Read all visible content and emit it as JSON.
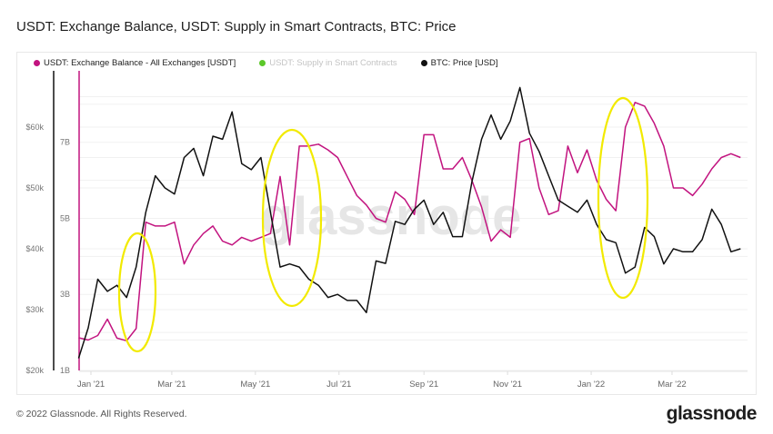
{
  "title": "USDT: Exchange Balance, USDT: Supply in Smart Contracts, BTC: Price",
  "footer": "© 2022 Glassnode. All Rights Reserved.",
  "logo": "glassnode",
  "watermark": "glassnode",
  "colors": {
    "usdt": "#c2137f",
    "contracts": "#5cc82a",
    "btc": "#111111",
    "annotation": "#f2ea00",
    "grid": "#f0f0f0"
  },
  "chart_data": {
    "type": "line",
    "title": "USDT: Exchange Balance, USDT: Supply in Smart Contracts, BTC: Price",
    "legend": [
      {
        "name": "USDT: Exchange Balance - All Exchanges [USDT]",
        "color": "#c2137f",
        "visible": true
      },
      {
        "name": "USDT: Supply in Smart Contracts",
        "color": "#5cc82a",
        "visible": false
      },
      {
        "name": "BTC: Price [USD]",
        "color": "#111111",
        "visible": true
      }
    ],
    "legend_position": "top-left",
    "x_ticks": [
      "Jan '21",
      "Mar '21",
      "May '21",
      "Jul '21",
      "Sep '21",
      "Nov '21",
      "Jan '22",
      "Mar '22"
    ],
    "y_left_outer": {
      "ticks": [
        "$20k",
        "$30k",
        "$40k",
        "$50k",
        "$60k"
      ],
      "values": [
        20000,
        30000,
        40000,
        50000,
        60000
      ],
      "range": [
        20000,
        69250
      ]
    },
    "y_left_inner": {
      "ticks": [
        "1B",
        "3B",
        "5B",
        "7B"
      ],
      "values": [
        1,
        3,
        5,
        7
      ],
      "range": [
        1,
        8.88
      ]
    },
    "grid": true,
    "dates": [
      "2020-12-23",
      "2020-12-30",
      "2021-01-06",
      "2021-01-13",
      "2021-01-20",
      "2021-01-27",
      "2021-02-03",
      "2021-02-10",
      "2021-02-17",
      "2021-02-24",
      "2021-03-03",
      "2021-03-10",
      "2021-03-17",
      "2021-03-24",
      "2021-03-31",
      "2021-04-07",
      "2021-04-14",
      "2021-04-21",
      "2021-04-28",
      "2021-05-05",
      "2021-05-12",
      "2021-05-19",
      "2021-05-26",
      "2021-06-02",
      "2021-06-09",
      "2021-06-16",
      "2021-06-23",
      "2021-06-30",
      "2021-07-07",
      "2021-07-14",
      "2021-07-21",
      "2021-07-28",
      "2021-08-04",
      "2021-08-11",
      "2021-08-18",
      "2021-08-25",
      "2021-09-01",
      "2021-09-08",
      "2021-09-15",
      "2021-09-22",
      "2021-09-29",
      "2021-10-06",
      "2021-10-13",
      "2021-10-20",
      "2021-10-27",
      "2021-11-03",
      "2021-11-10",
      "2021-11-17",
      "2021-11-24",
      "2021-12-01",
      "2021-12-08",
      "2021-12-15",
      "2021-12-22",
      "2021-12-29",
      "2022-01-05",
      "2022-01-12",
      "2022-01-19",
      "2022-01-26",
      "2022-02-02",
      "2022-02-09",
      "2022-02-16",
      "2022-02-23",
      "2022-03-02",
      "2022-03-09",
      "2022-03-16",
      "2022-03-23",
      "2022-03-30",
      "2022-04-06",
      "2022-04-13",
      "2022-04-20"
    ],
    "series": [
      {
        "name": "USDT: Exchange Balance - All Exchanges [USDT]",
        "axis": "inner",
        "unit": "B",
        "values": [
          1.86,
          1.8,
          1.92,
          2.35,
          1.85,
          1.78,
          2.1,
          4.9,
          4.8,
          4.8,
          4.9,
          3.8,
          4.3,
          4.6,
          4.8,
          4.4,
          4.3,
          4.5,
          4.4,
          4.5,
          4.6,
          6.1,
          4.3,
          6.9,
          6.9,
          6.95,
          6.8,
          6.6,
          6.1,
          5.6,
          5.35,
          5.0,
          4.9,
          5.7,
          5.5,
          5.1,
          7.2,
          7.2,
          6.3,
          6.3,
          6.6,
          6.0,
          5.3,
          4.4,
          4.7,
          4.5,
          7.0,
          7.1,
          5.8,
          5.1,
          5.2,
          6.9,
          6.2,
          6.8,
          6.0,
          5.5,
          5.2,
          7.4,
          8.05,
          7.95,
          7.5,
          6.9,
          5.8,
          5.8,
          5.6,
          5.9,
          6.3,
          6.6,
          6.7,
          6.6
        ]
      },
      {
        "name": "BTC: Price [USD]",
        "axis": "outer",
        "unit": "USD",
        "values": [
          22000,
          27000,
          35000,
          33000,
          34000,
          32000,
          37000,
          46000,
          52000,
          50000,
          49000,
          55000,
          56500,
          52000,
          58500,
          58000,
          62500,
          54000,
          53000,
          55000,
          46000,
          37000,
          37500,
          37000,
          35000,
          34000,
          32000,
          32500,
          31500,
          31500,
          29500,
          38000,
          37600,
          44500,
          44000,
          46500,
          48000,
          44000,
          46000,
          42000,
          42000,
          51000,
          58000,
          62000,
          58000,
          61000,
          66500,
          59000,
          56000,
          52000,
          48000,
          47000,
          46000,
          48000,
          44000,
          41500,
          41000,
          36000,
          37000,
          43500,
          42000,
          37500,
          40000,
          39500,
          39500,
          41500,
          46500,
          44000,
          39500,
          40000
        ]
      }
    ]
  }
}
